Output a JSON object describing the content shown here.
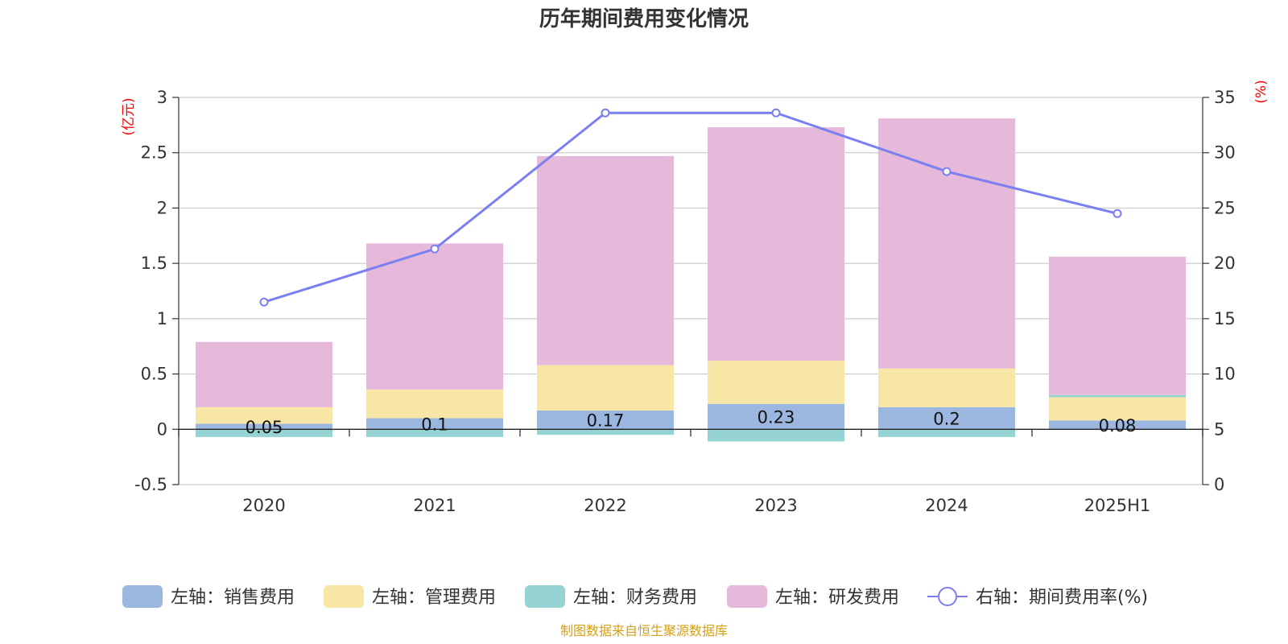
{
  "chart_data": {
    "type": "bar",
    "title": "历年期间费用变化情况",
    "left_unit": "(亿元)",
    "right_unit": "(%)",
    "categories": [
      "2020",
      "2021",
      "2022",
      "2023",
      "2024",
      "2025H1"
    ],
    "left_ylim": [
      -0.5,
      3
    ],
    "left_ticks": [
      "3",
      "2.5",
      "2",
      "1.5",
      "1",
      "0.5",
      "0",
      "-0.5"
    ],
    "right_ylim": [
      0,
      35
    ],
    "right_ticks": [
      "35",
      "30",
      "25",
      "20",
      "15",
      "10",
      "5",
      "0"
    ],
    "stacked": true,
    "grid": true,
    "legend_position": "bottom",
    "series": [
      {
        "name": "左轴：销售费用",
        "axis": "left",
        "type": "bar",
        "color": "#9bb7e0",
        "values": [
          0.05,
          0.1,
          0.17,
          0.23,
          0.2,
          0.08
        ],
        "labels": [
          "0.05",
          "0.1",
          "0.17",
          "0.23",
          "0.2",
          "0.08"
        ]
      },
      {
        "name": "左轴：管理费用",
        "axis": "left",
        "type": "bar",
        "color": "#f7e6a6",
        "values": [
          0.15,
          0.26,
          0.41,
          0.39,
          0.35,
          0.21
        ]
      },
      {
        "name": "左轴：财务费用",
        "axis": "left",
        "type": "bar",
        "color": "#96d4d4",
        "values": [
          -0.07,
          -0.07,
          -0.05,
          -0.11,
          -0.07,
          0.02
        ]
      },
      {
        "name": "左轴：研发费用",
        "axis": "left",
        "type": "bar",
        "color": "#e6b8d9",
        "values": [
          0.59,
          1.32,
          1.89,
          2.11,
          2.26,
          1.25
        ]
      },
      {
        "name": "右轴：期间费用率(%)",
        "axis": "right",
        "type": "line",
        "color": "#7b7ff0",
        "values": [
          16.5,
          21.3,
          33.6,
          33.6,
          28.3,
          24.5
        ]
      }
    ],
    "source": "制图数据来自恒生聚源数据库"
  },
  "colors": {
    "unit_label": "#ff0000",
    "source_text": "#d4a017",
    "axis_text": "#333333",
    "grid": "#cccccc"
  }
}
